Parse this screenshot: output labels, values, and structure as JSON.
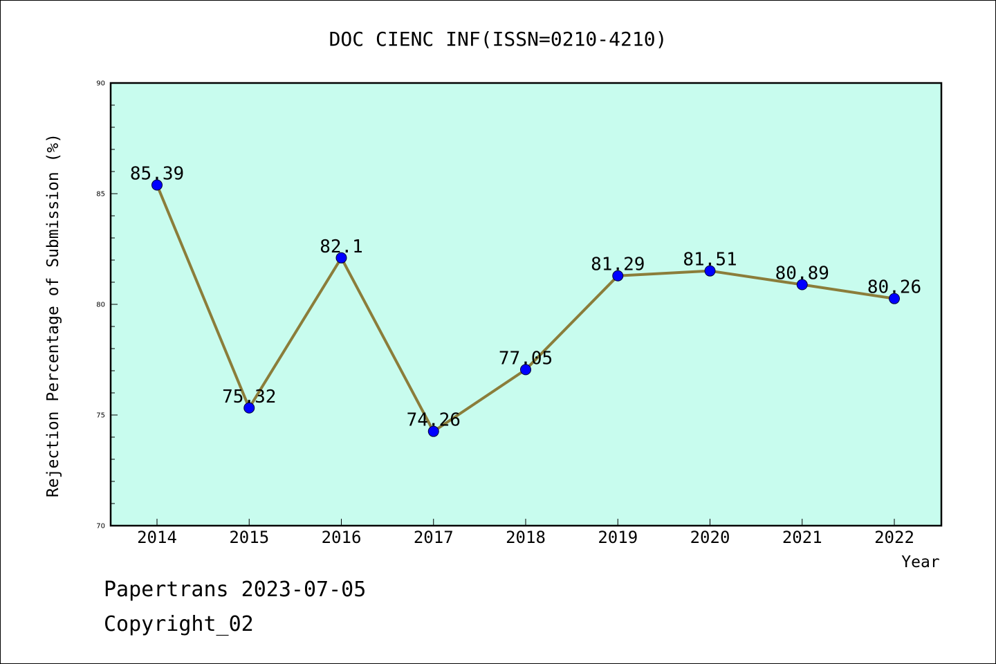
{
  "chart_data": {
    "type": "line",
    "title": "DOC CIENC INF(ISSN=0210-4210)",
    "xlabel": "Year",
    "ylabel": "Rejection Percentage of Submission (%)",
    "categories": [
      "2014",
      "2015",
      "2016",
      "2017",
      "2018",
      "2019",
      "2020",
      "2021",
      "2022"
    ],
    "series": [
      {
        "values": [
          85.39,
          75.32,
          82.1,
          74.26,
          77.05,
          81.29,
          81.51,
          80.89,
          80.26
        ],
        "labels": [
          "85.39",
          "75.32",
          "82.1",
          "74.26",
          "77.05",
          "81.29",
          "81.51",
          "80.89",
          "80.26"
        ],
        "line_color": "#8b7d3a",
        "marker_color": "#0000ff"
      }
    ],
    "ylim": [
      70,
      90
    ],
    "yticks": [
      "70",
      "75",
      "80",
      "85",
      "90"
    ],
    "plot_background": "#c8fcee",
    "grid": false
  },
  "footer": {
    "line1": "Papertrans 2023-07-05",
    "line2": "Copyright_02"
  }
}
